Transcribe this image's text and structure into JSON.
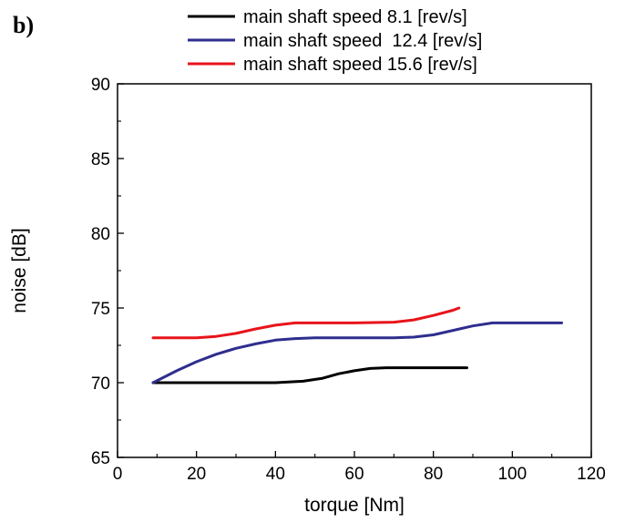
{
  "panel_label": "b)",
  "chart_data": {
    "type": "line",
    "title": "",
    "xlabel": "torque [Nm]",
    "ylabel": "noise [dB]",
    "xlim": [
      0,
      120
    ],
    "ylim": [
      65,
      90
    ],
    "xticks": [
      0,
      20,
      40,
      60,
      80,
      100,
      120
    ],
    "yticks": [
      65,
      70,
      75,
      80,
      85,
      90
    ],
    "grid": false,
    "legend_position": "top",
    "series": [
      {
        "name": "main shaft speed 8.1 [rev/s]",
        "color": "#000000",
        "x": [
          9,
          20,
          30,
          40,
          47,
          52,
          56,
          60,
          64,
          68,
          72,
          76,
          80,
          84,
          88.5
        ],
        "y": [
          70,
          70,
          70,
          70,
          70.1,
          70.3,
          70.6,
          70.8,
          70.95,
          71,
          71,
          71,
          71,
          71,
          71
        ]
      },
      {
        "name": "main shaft speed  12.4 [rev/s]",
        "color": "#2e2e8f",
        "x": [
          9,
          15,
          20,
          25,
          30,
          35,
          40,
          45,
          50,
          60,
          70,
          75,
          80,
          85,
          90,
          95,
          100,
          105,
          112.5
        ],
        "y": [
          70,
          70.8,
          71.4,
          71.9,
          72.3,
          72.6,
          72.85,
          72.95,
          73,
          73,
          73,
          73.05,
          73.2,
          73.5,
          73.8,
          74,
          74,
          74,
          74
        ]
      },
      {
        "name": "main shaft speed 15.6 [rev/s]",
        "color": "#e8141b",
        "x": [
          9,
          15,
          20,
          25,
          30,
          35,
          40,
          45,
          50,
          60,
          70,
          75,
          80,
          85,
          86.5
        ],
        "y": [
          73,
          73,
          73,
          73.1,
          73.3,
          73.6,
          73.85,
          74,
          74,
          74,
          74.05,
          74.2,
          74.5,
          74.85,
          75
        ]
      }
    ]
  }
}
